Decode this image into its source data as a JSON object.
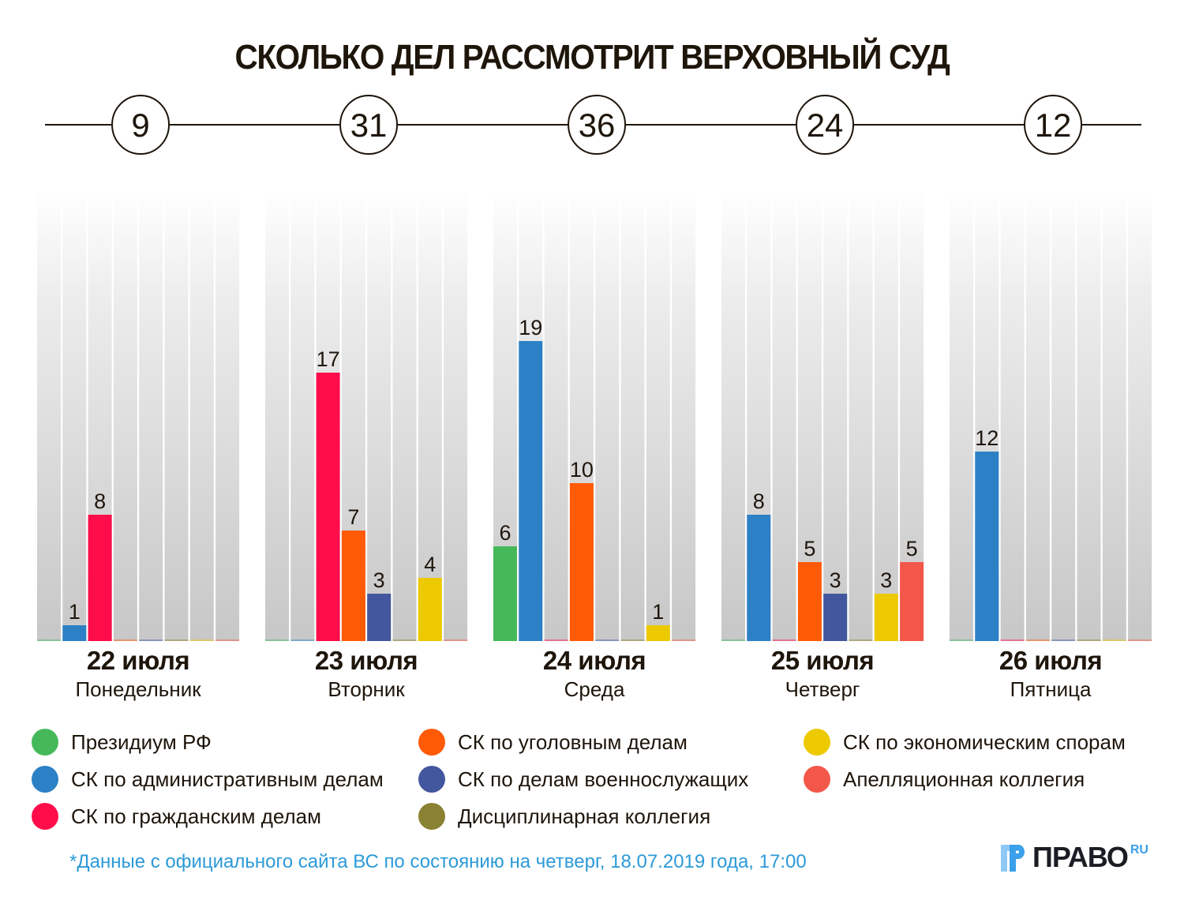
{
  "title": "СКОЛЬКО ДЕЛ РАССМОТРИТ ВЕРХОВНЫЙ СУД",
  "chart_data": {
    "type": "bar",
    "title": "СКОЛЬКО ДЕЛ РАССМОТРИТ ВЕРХОВНЫЙ СУД",
    "xlabel": "",
    "ylabel": "",
    "ylim": [
      0,
      28
    ],
    "grid": false,
    "legend_position": "bottom",
    "categories": [
      {
        "date": "22 июля",
        "weekday": "Понедельник",
        "total": 9
      },
      {
        "date": "23 июля",
        "weekday": "Вторник",
        "total": 31
      },
      {
        "date": "24 июля",
        "weekday": "Среда",
        "total": 36
      },
      {
        "date": "25 июля",
        "weekday": "Четверг",
        "total": 24
      },
      {
        "date": "26 июля",
        "weekday": "Пятница",
        "total": 12
      }
    ],
    "series": [
      {
        "name": "Президиум РФ",
        "color": "#45b95a",
        "values": [
          0,
          0,
          6,
          0,
          0
        ]
      },
      {
        "name": "СК по административным делам",
        "color": "#2c80c5",
        "values": [
          1,
          0,
          19,
          8,
          12
        ]
      },
      {
        "name": "СК по гражданским делам",
        "color": "#ff0d4b",
        "values": [
          8,
          17,
          0,
          0,
          0
        ]
      },
      {
        "name": "СК по уголовным делам",
        "color": "#ff5a06",
        "values": [
          0,
          7,
          10,
          5,
          0
        ]
      },
      {
        "name": "СК по делам военнослужащих",
        "color": "#42579e",
        "values": [
          0,
          3,
          0,
          3,
          0
        ]
      },
      {
        "name": "Дисциплинарная коллегия",
        "color": "#8a8233",
        "values": [
          0,
          0,
          0,
          0,
          0
        ]
      },
      {
        "name": "СК по экономическим спорам",
        "color": "#edc900",
        "values": [
          0,
          4,
          1,
          3,
          0
        ]
      },
      {
        "name": "Апелляционная коллегия",
        "color": "#f3574a",
        "values": [
          0,
          0,
          0,
          5,
          0
        ]
      }
    ]
  },
  "legend": [
    {
      "label": "Президиум РФ",
      "color": "#45b95a"
    },
    {
      "label": "СК по административным делам",
      "color": "#2c80c5"
    },
    {
      "label": "СК по гражданским делам",
      "color": "#ff0d4b"
    },
    {
      "label": "СК по уголовным делам",
      "color": "#ff5a06"
    },
    {
      "label": "СК по делам военнослужащих",
      "color": "#42579e"
    },
    {
      "label": "Дисциплинарная коллегия",
      "color": "#8a8233"
    },
    {
      "label": "СК по экономическим спорам",
      "color": "#edc900"
    },
    {
      "label": "Апелляционная коллегия",
      "color": "#f3574a"
    }
  ],
  "footnote": "*Данные с официального сайта ВС по состоянию на четверг, 18.07.2019 года, 17:00",
  "logo": {
    "text": "ПРАВО",
    "suffix": "RU"
  }
}
